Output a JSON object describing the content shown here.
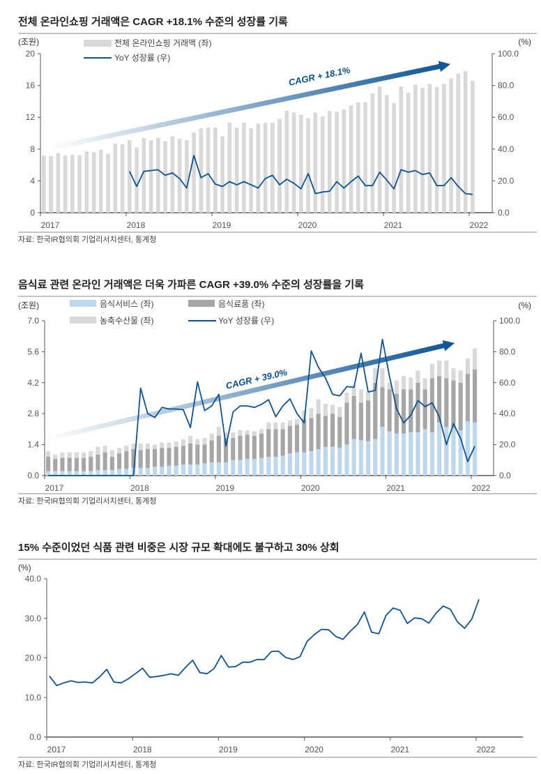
{
  "colors": {
    "line": "#0b5394",
    "total_bar": "#d9d9d9",
    "food_service": "#bdd7ee",
    "food_products": "#a6a6a6",
    "agri": "#d9d9d9",
    "axis": "#555555",
    "arrow_dark": "#0b5394",
    "arrow_light": "#ffffff"
  },
  "chart_data": [
    {
      "type": "bar+line",
      "title": "전체 온라인쇼핑 거래액은 CAGR +18.1% 수준의 성장률 기록",
      "source": "자료: 한국IR협의회 기업리서치센터, 통계청",
      "ylabel_left": "(조원)",
      "ylabel_right": "(%)",
      "ylim_left": [
        0,
        20
      ],
      "yticks_left": [
        "0",
        "4",
        "8",
        "12",
        "16",
        "20"
      ],
      "ylim_right": [
        0,
        100
      ],
      "yticks_right": [
        "0.0",
        "20.0",
        "40.0",
        "60.0",
        "80.0",
        "100.0"
      ],
      "xticks": [
        "2017",
        "2018",
        "2019",
        "2020",
        "2021",
        "2022"
      ],
      "x_start": "2017-01",
      "x_end": "2022-01",
      "frequency": "monthly",
      "annotation": "CAGR + 18.1%",
      "legend": "top-left",
      "series": [
        {
          "name": "전체 온라인쇼핑 거래액 (좌)",
          "kind": "bar",
          "axis": "left",
          "values": [
            7.2,
            7.1,
            7.5,
            7.2,
            7.3,
            7.2,
            7.7,
            7.6,
            7.9,
            7.4,
            8.7,
            8.6,
            9.1,
            8.2,
            9.4,
            9.1,
            9.4,
            9.0,
            9.6,
            9.3,
            9.1,
            10.1,
            10.6,
            10.7,
            10.7,
            9.6,
            11.3,
            10.7,
            11.3,
            10.6,
            11.2,
            11.3,
            11.3,
            11.8,
            12.8,
            12.6,
            12.3,
            11.9,
            12.6,
            12.1,
            12.8,
            12.7,
            13.0,
            13.5,
            13.9,
            13.9,
            15.0,
            15.9,
            14.8,
            13.8,
            15.9,
            15.1,
            16.1,
            15.7,
            16.2,
            15.8,
            16.2,
            16.9,
            17.5,
            17.8,
            16.6
          ]
        },
        {
          "name": "YoY 성장률 (우)",
          "kind": "line",
          "axis": "right",
          "values": [
            null,
            null,
            null,
            null,
            null,
            null,
            null,
            null,
            null,
            null,
            null,
            null,
            26,
            16.5,
            26,
            26.5,
            27,
            23.5,
            25,
            21.5,
            15.5,
            36,
            22,
            24.5,
            18,
            16.5,
            19.5,
            17.5,
            19.5,
            17.5,
            15.5,
            21.5,
            23.5,
            17.5,
            21,
            18.5,
            15,
            24.5,
            12,
            13,
            13.5,
            19.5,
            15.5,
            19.5,
            23,
            17,
            17,
            25.5,
            20.5,
            15,
            27,
            25.5,
            26.5,
            24,
            25,
            17,
            17,
            22,
            16.5,
            12,
            11.5
          ]
        }
      ]
    },
    {
      "type": "stacked-bar+line",
      "title": "음식료 관련 온라인 거래액은 더욱 가파른 CAGR +39.0% 수준의 성장률을 기록",
      "source": "자료: 한국IR협의회 기업리서치센터, 통계청",
      "ylabel_left": "(조원)",
      "ylabel_right": "(%)",
      "ylim_left": [
        0,
        7
      ],
      "yticks_left": [
        "0.0",
        "1.4",
        "2.8",
        "4.2",
        "5.6",
        "7.0"
      ],
      "ylim_right": [
        0,
        100
      ],
      "yticks_right": [
        "0.0",
        "20.0",
        "40.0",
        "60.0",
        "80.0",
        "100.0"
      ],
      "xticks": [
        "2017",
        "2018",
        "2019",
        "2020",
        "2021",
        "2022"
      ],
      "x_start": "2017-01",
      "x_end": "2022-01",
      "frequency": "monthly",
      "annotation": "CAGR + 39.0%",
      "legend": "top-left",
      "series": [
        {
          "name": "음식서비스 (좌)",
          "kind": "bar",
          "axis": "left",
          "values": [
            0.2,
            0.2,
            0.2,
            0.2,
            0.2,
            0.2,
            0.2,
            0.25,
            0.25,
            0.25,
            0.3,
            0.3,
            0.35,
            0.35,
            0.35,
            0.4,
            0.4,
            0.45,
            0.45,
            0.5,
            0.5,
            0.5,
            0.55,
            0.6,
            0.6,
            0.6,
            0.7,
            0.7,
            0.75,
            0.75,
            0.8,
            0.85,
            0.85,
            0.9,
            1.0,
            1.05,
            1.05,
            1.1,
            1.2,
            1.3,
            1.3,
            1.25,
            1.4,
            1.65,
            1.6,
            1.55,
            1.65,
            2.2,
            2.0,
            1.9,
            1.9,
            1.95,
            1.95,
            2.1,
            1.95,
            2.4,
            2.2,
            2.15,
            2.05,
            2.45,
            2.4
          ]
        },
        {
          "name": "음식료품 (좌)",
          "kind": "bar",
          "axis": "left",
          "values": [
            0.65,
            0.55,
            0.6,
            0.6,
            0.6,
            0.6,
            0.65,
            0.7,
            0.8,
            0.6,
            0.7,
            0.8,
            0.85,
            0.8,
            0.85,
            0.8,
            0.85,
            0.8,
            0.85,
            0.85,
            0.95,
            0.9,
            0.85,
            1.0,
            1.2,
            1.1,
            1.0,
            1.1,
            1.1,
            1.05,
            1.1,
            1.25,
            1.25,
            1.2,
            1.25,
            1.25,
            1.5,
            1.5,
            1.6,
            1.4,
            1.5,
            1.4,
            1.9,
            1.95,
            1.7,
            1.85,
            2.55,
            1.8,
            1.9,
            1.8,
            2.0,
            1.95,
            2.25,
            1.8,
            2.45,
            2.1,
            2.2,
            2.15,
            2.15,
            2.15,
            2.4
          ]
        },
        {
          "name": "농축수산물 (좌)",
          "kind": "bar",
          "axis": "left",
          "values": [
            0.25,
            0.2,
            0.25,
            0.25,
            0.25,
            0.25,
            0.25,
            0.35,
            0.3,
            0.3,
            0.25,
            0.25,
            0.25,
            0.3,
            0.25,
            0.2,
            0.25,
            0.25,
            0.25,
            0.3,
            0.35,
            0.25,
            0.3,
            0.3,
            0.4,
            0.25,
            0.25,
            0.25,
            0.2,
            0.2,
            0.2,
            0.3,
            0.3,
            0.3,
            0.25,
            0.25,
            0.4,
            0.45,
            0.65,
            0.55,
            0.4,
            0.45,
            0.45,
            0.5,
            0.6,
            0.4,
            0.65,
            0.85,
            0.3,
            0.6,
            0.6,
            0.55,
            0.55,
            0.5,
            0.65,
            0.7,
            0.8,
            0.55,
            0.55,
            0.7,
            0.95
          ]
        },
        {
          "name": "YoY 성장률 (우)",
          "kind": "line",
          "axis": "right",
          "values": [
            0,
            0,
            0,
            0,
            0,
            0,
            0,
            0,
            0,
            0,
            0,
            0,
            0,
            56.5,
            40,
            37.5,
            44,
            43,
            43,
            42.5,
            31,
            60.5,
            42,
            45,
            52.5,
            19,
            41,
            45,
            45,
            44,
            46,
            49,
            38,
            45,
            49.5,
            40,
            34,
            80.5,
            70,
            63,
            52.5,
            51.5,
            57.5,
            57,
            79,
            54,
            55,
            88,
            64,
            43,
            34,
            39,
            48.5,
            44.5,
            47,
            38,
            20,
            33.5,
            24,
            9,
            19
          ]
        }
      ]
    },
    {
      "type": "line",
      "title": "15% 수준이었던 식품 관련 비중은 시장 규모 확대에도 불구하고 30% 상회",
      "source": "자료: 한국IR협의회 기업리서치센터, 통계청",
      "ylabel": "(%)",
      "ylim": [
        0,
        40
      ],
      "yticks": [
        "0.0",
        "10.0",
        "20.0",
        "30.0",
        "40.0"
      ],
      "xticks": [
        "2017",
        "2018",
        "2019",
        "2020",
        "2021",
        "2022"
      ],
      "x_start": "2017-01",
      "x_end": "2022-01",
      "frequency": "monthly",
      "series": [
        {
          "values": [
            15.4,
            13.0,
            13.7,
            14.2,
            13.8,
            13.9,
            13.7,
            15.2,
            17.1,
            13.9,
            13.7,
            14.7,
            16.0,
            17.4,
            15.1,
            15.3,
            15.6,
            16.0,
            15.6,
            17.6,
            19.4,
            16.3,
            16.0,
            17.3,
            20.6,
            17.7,
            17.8,
            18.9,
            18.9,
            19.6,
            19.6,
            21.6,
            21.7,
            20.1,
            19.6,
            20.3,
            24.2,
            25.9,
            27.2,
            27.1,
            25.4,
            24.7,
            26.7,
            28.4,
            31.6,
            26.5,
            26.1,
            30.7,
            32.6,
            32.0,
            28.7,
            30.1,
            29.9,
            28.8,
            31.3,
            33.1,
            32.3,
            29.1,
            27.5,
            29.8,
            34.8
          ]
        }
      ]
    }
  ]
}
